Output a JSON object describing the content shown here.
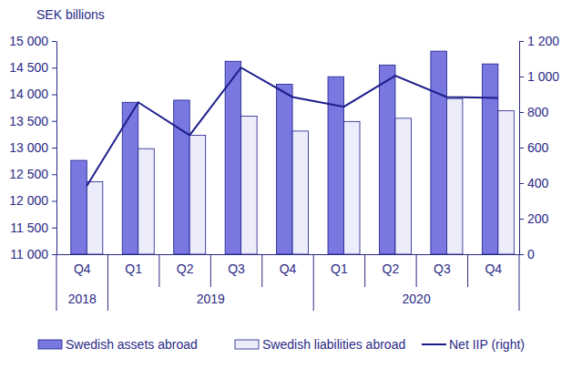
{
  "chart_data": {
    "type": "bar",
    "y_label": "SEK billions",
    "categories": [
      "Q4",
      "Q1",
      "Q2",
      "Q3",
      "Q4",
      "Q1",
      "Q2",
      "Q3",
      "Q4"
    ],
    "year_groups": [
      {
        "label": "2018",
        "count": 1
      },
      {
        "label": "2019",
        "count": 4
      },
      {
        "label": "2020",
        "count": 4
      }
    ],
    "series": [
      {
        "name": "Swedish assets abroad",
        "type": "bar",
        "color": "#7878e0",
        "values": [
          12760,
          13850,
          13890,
          14620,
          14190,
          14330,
          14550,
          14810,
          14570
        ]
      },
      {
        "name": "Swedish liabilities abroad",
        "type": "bar",
        "color": "#ececfa",
        "values": [
          12360,
          12980,
          13230,
          13590,
          13310,
          13490,
          13550,
          13920,
          13690
        ]
      },
      {
        "name": "Net IIP (right)",
        "type": "line",
        "axis": "y2",
        "color": "#1c1c8c",
        "values": [
          385,
          855,
          670,
          1050,
          885,
          830,
          1005,
          885,
          880
        ]
      }
    ],
    "ylim": [
      11000,
      15000
    ],
    "yticks": [
      {
        "value": 11000,
        "label": "11 000"
      },
      {
        "value": 11500,
        "label": "11 500"
      },
      {
        "value": 12000,
        "label": "12 000"
      },
      {
        "value": 12500,
        "label": "12 500"
      },
      {
        "value": 13000,
        "label": "13 000"
      },
      {
        "value": 13500,
        "label": "13 500"
      },
      {
        "value": 14000,
        "label": "14 000"
      },
      {
        "value": 14500,
        "label": "14 500"
      },
      {
        "value": 15000,
        "label": "15 000"
      }
    ],
    "y2lim": [
      0,
      1200
    ],
    "y2ticks": [
      0,
      200,
      400,
      600,
      800,
      {
        "value": 1000,
        "label": "1 000"
      },
      {
        "value": 1200,
        "label": "1 200"
      }
    ],
    "grid": false,
    "legend": "bottom"
  }
}
